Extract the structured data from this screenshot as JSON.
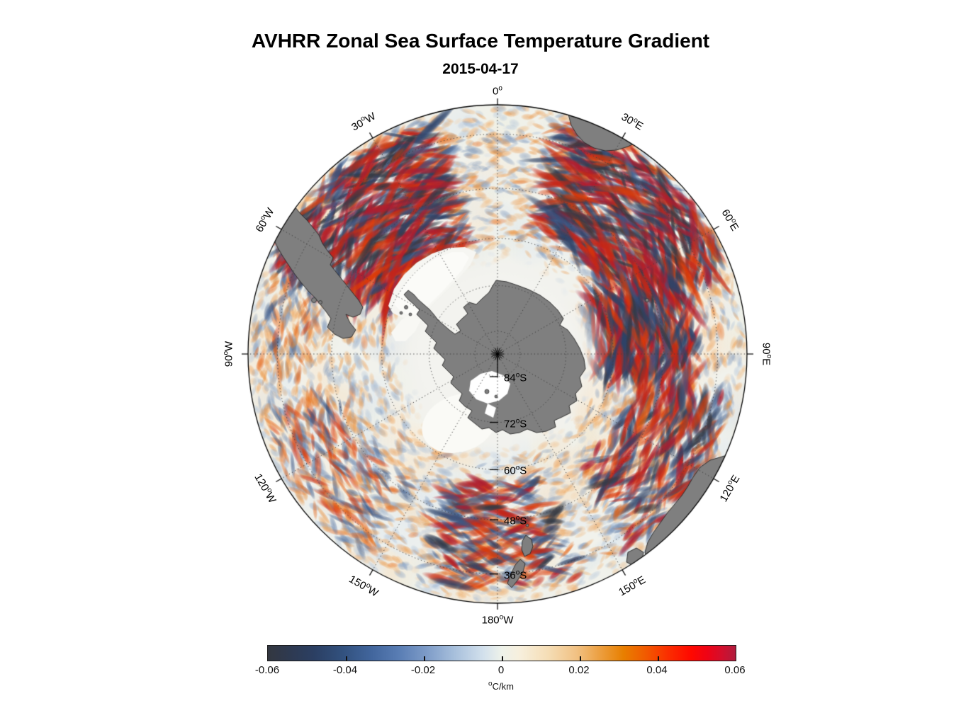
{
  "title": "AVHRR Zonal Sea Surface Temperature Gradient",
  "subtitle": "2015-04-17",
  "map": {
    "longitude_labels": [
      {
        "num": "0",
        "hemi": "",
        "az": 0
      },
      {
        "num": "30",
        "hemi": "E",
        "az": 30
      },
      {
        "num": "60",
        "hemi": "E",
        "az": 60
      },
      {
        "num": "90",
        "hemi": "E",
        "az": 90
      },
      {
        "num": "120",
        "hemi": "E",
        "az": 120
      },
      {
        "num": "150",
        "hemi": "E",
        "az": 150
      },
      {
        "num": "180",
        "hemi": "W",
        "az": 180
      },
      {
        "num": "150",
        "hemi": "W",
        "az": -150
      },
      {
        "num": "120",
        "hemi": "W",
        "az": -120
      },
      {
        "num": "90",
        "hemi": "W",
        "az": -90
      },
      {
        "num": "60",
        "hemi": "W",
        "az": -60
      },
      {
        "num": "30",
        "hemi": "W",
        "az": -30
      }
    ],
    "latitude_labels": [
      {
        "num": "84",
        "hemi": "S",
        "lat": 84
      },
      {
        "num": "72",
        "hemi": "S",
        "lat": 72
      },
      {
        "num": "60",
        "hemi": "S",
        "lat": 60
      },
      {
        "num": "48",
        "hemi": "S",
        "lat": 48
      },
      {
        "num": "36",
        "hemi": "S",
        "lat": 36
      }
    ],
    "land_color": "#7f7f7f",
    "coast_color": "#262626",
    "ocean_color": "#f1f2ec",
    "ice_color": "#f3f3ef",
    "grid_color": "#3f3f3f"
  },
  "colorbar": {
    "tick_labels": [
      "-0.06",
      "-0.04",
      "-0.02",
      "0",
      "0.02",
      "0.04",
      "0.06"
    ],
    "unit": "°C/km",
    "stops": [
      [
        0.0,
        "#333740"
      ],
      [
        0.05,
        "#2e3a52"
      ],
      [
        0.1,
        "#2b3f63"
      ],
      [
        0.16,
        "#32517e"
      ],
      [
        0.22,
        "#41659c"
      ],
      [
        0.28,
        "#597db4"
      ],
      [
        0.34,
        "#7e9cc8"
      ],
      [
        0.4,
        "#a8c0dc"
      ],
      [
        0.46,
        "#d2e0ec"
      ],
      [
        0.5,
        "#eef2ea"
      ],
      [
        0.54,
        "#f7efdc"
      ],
      [
        0.6,
        "#f5ddb5"
      ],
      [
        0.66,
        "#f1c183"
      ],
      [
        0.71,
        "#ec9f40"
      ],
      [
        0.76,
        "#e87f00"
      ],
      [
        0.81,
        "#f25800"
      ],
      [
        0.86,
        "#fb2a00"
      ],
      [
        0.905,
        "#ff0800"
      ],
      [
        0.94,
        "#ee0316"
      ],
      [
        0.97,
        "#d40e2c"
      ],
      [
        1.0,
        "#b01c3e"
      ]
    ]
  },
  "chart_data": {
    "type": "heatmap",
    "title": "AVHRR Zonal Sea Surface Temperature Gradient",
    "date": "2015-04-17",
    "units": "°C/km",
    "value_range": [
      -0.06,
      0.06
    ],
    "colorbar_ticks": [
      -0.06,
      -0.04,
      -0.02,
      0,
      0.02,
      0.04,
      0.06
    ],
    "projection": "south polar, boundary 30S",
    "longitude_gridlines": [
      "0°",
      "30°E",
      "60°E",
      "90°E",
      "120°E",
      "150°E",
      "180°W",
      "150°W",
      "120°W",
      "90°W",
      "60°W",
      "30°W"
    ],
    "latitude_gridlines": [
      "84°S",
      "72°S",
      "60°S",
      "48°S",
      "36°S"
    ],
    "high_gradient_sectors": [
      {
        "az0": -70,
        "az1": -15,
        "r0": 0.45,
        "r1": 0.97,
        "strength": 1.0
      },
      {
        "az0": 15,
        "az1": 70,
        "r0": 0.5,
        "r1": 0.98,
        "strength": 0.95
      },
      {
        "az0": 60,
        "az1": 100,
        "r0": 0.38,
        "r1": 0.8,
        "strength": 0.9
      },
      {
        "az0": 100,
        "az1": 145,
        "r0": 0.55,
        "r1": 0.95,
        "strength": 0.6
      },
      {
        "az0": 160,
        "az1": 200,
        "r0": 0.5,
        "r1": 0.95,
        "strength": 0.55
      },
      {
        "az0": -150,
        "az1": -100,
        "r0": 0.6,
        "r1": 0.98,
        "strength": 0.45
      },
      {
        "az0": -100,
        "az1": -70,
        "r0": 0.72,
        "r1": 0.98,
        "strength": 0.4
      }
    ]
  }
}
